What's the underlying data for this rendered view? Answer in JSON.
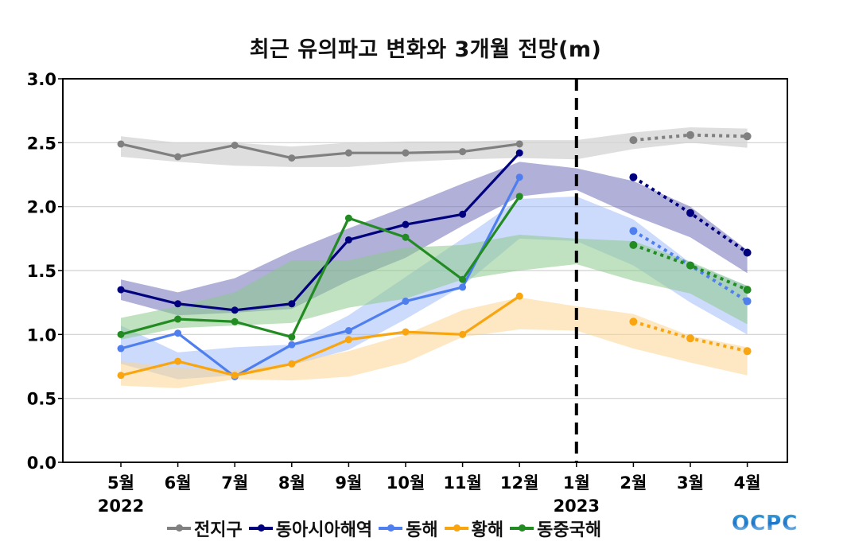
{
  "chart_data": {
    "type": "line",
    "title": "최근 유의파고 변화와 3개월 전망(m)",
    "xlabel": "",
    "ylabel": "",
    "ylim": [
      0.0,
      3.0
    ],
    "yticks": [
      "0.0",
      "0.5",
      "1.0",
      "1.5",
      "2.0",
      "2.5",
      "3.0"
    ],
    "grid": "horizontal",
    "categories": [
      "5월",
      "6월",
      "7월",
      "8월",
      "9월",
      "10월",
      "11월",
      "12월",
      "1월",
      "2월",
      "3월",
      "4월"
    ],
    "year_labels": [
      {
        "label": "2022",
        "at_category": "5월"
      },
      {
        "label": "2023",
        "at_category": "1월"
      }
    ],
    "divider_at_category": "1월",
    "observed_range": [
      "5월",
      "12월"
    ],
    "forecast_range": [
      "2월",
      "4월"
    ],
    "legend_position": "bottom",
    "series": [
      {
        "name": "전지구",
        "color": "#808080",
        "band_color": "#d3d3d3",
        "observed": [
          2.49,
          2.39,
          2.48,
          2.38,
          2.42,
          2.42,
          2.43,
          2.49
        ],
        "forecast": [
          2.52,
          2.56,
          2.55
        ],
        "band_upper": [
          2.55,
          2.5,
          2.5,
          2.47,
          2.5,
          2.51,
          2.51,
          2.52,
          2.52,
          2.58,
          2.62,
          2.61
        ],
        "band_lower": [
          2.39,
          2.35,
          2.32,
          2.31,
          2.31,
          2.35,
          2.37,
          2.38,
          2.37,
          2.45,
          2.5,
          2.46
        ]
      },
      {
        "name": "동아시아해역",
        "color": "#00007f",
        "band_color": "#6f6fb8",
        "observed": [
          1.35,
          1.24,
          1.19,
          1.24,
          1.74,
          1.86,
          1.94,
          2.42
        ],
        "forecast": [
          2.23,
          1.95,
          1.64
        ],
        "band_upper": [
          1.43,
          1.33,
          1.44,
          1.65,
          1.83,
          2.0,
          2.18,
          2.35,
          2.3,
          2.2,
          2.0,
          1.66
        ],
        "band_lower": [
          1.27,
          1.15,
          1.17,
          1.2,
          1.42,
          1.6,
          1.85,
          2.08,
          2.13,
          1.93,
          1.76,
          1.48
        ]
      },
      {
        "name": "동해",
        "color": "#4f7fef",
        "band_color": "#a3bcf7",
        "observed": [
          0.89,
          1.01,
          0.67,
          0.92,
          1.03,
          1.26,
          1.37,
          2.23
        ],
        "forecast": [
          1.81,
          1.54,
          1.26
        ],
        "band_upper": [
          1.07,
          0.86,
          0.9,
          0.92,
          1.15,
          1.45,
          1.75,
          2.06,
          2.08,
          1.9,
          1.56,
          1.38
        ],
        "band_lower": [
          0.77,
          0.65,
          0.68,
          0.76,
          0.88,
          1.12,
          1.38,
          1.75,
          1.73,
          1.54,
          1.25,
          1.0
        ]
      },
      {
        "name": "황해",
        "color": "#f8a50f",
        "band_color": "#fcd592",
        "observed": [
          0.68,
          0.79,
          0.68,
          0.77,
          0.96,
          1.02,
          1.0,
          1.3
        ],
        "forecast": [
          1.1,
          0.97,
          0.87
        ],
        "band_upper": [
          0.79,
          0.74,
          0.72,
          0.78,
          0.87,
          1.0,
          1.19,
          1.29,
          1.22,
          1.16,
          0.99,
          0.9
        ],
        "band_lower": [
          0.6,
          0.58,
          0.65,
          0.64,
          0.67,
          0.78,
          0.98,
          1.04,
          1.03,
          0.89,
          0.78,
          0.68
        ]
      },
      {
        "name": "동중국해",
        "color": "#228b22",
        "band_color": "#8ccb8c",
        "observed": [
          1.0,
          1.12,
          1.1,
          0.98,
          1.91,
          1.76,
          1.43,
          2.08
        ],
        "forecast": [
          1.7,
          1.54,
          1.35
        ],
        "band_upper": [
          1.13,
          1.22,
          1.33,
          1.58,
          1.58,
          1.68,
          1.7,
          1.78,
          1.75,
          1.73,
          1.57,
          1.38
        ],
        "band_lower": [
          0.96,
          1.05,
          1.07,
          1.09,
          1.21,
          1.28,
          1.43,
          1.5,
          1.55,
          1.42,
          1.32,
          1.08
        ]
      }
    ]
  },
  "logo": {
    "text": "OCPC"
  }
}
